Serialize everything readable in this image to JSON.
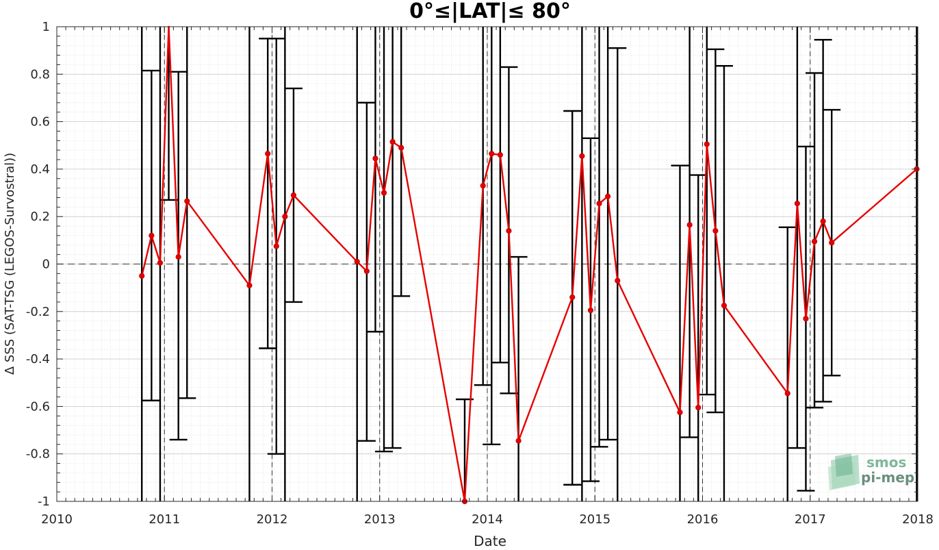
{
  "chart_data": {
    "type": "line",
    "title": "0°≤|LAT|≤ 80°",
    "xlabel": "Date",
    "ylabel": "Δ SSS (SAT-TSG (LEGOS-Survostral))",
    "xlim": [
      2010,
      2018
    ],
    "ylim": [
      -1,
      1
    ],
    "x_ticks": [
      "2010",
      "2011",
      "2012",
      "2013",
      "2014",
      "2015",
      "2016",
      "2017",
      "2018"
    ],
    "y_ticks": [
      "1",
      "0.8",
      "0.6",
      "0.4",
      "0.2",
      "0",
      "-0.2",
      "-0.4",
      "-0.6",
      "-0.8",
      "-1"
    ],
    "grid": true,
    "minor_grid": true,
    "zero_line": true,
    "year_boundary_lines": [
      2011,
      2012,
      2013,
      2014,
      2015,
      2016,
      2017
    ],
    "series": [
      {
        "color": "#e60000",
        "marker": "circle",
        "points": [
          {
            "x": 2010.79,
            "y": -0.05,
            "low": -1.0,
            "high": 1.0
          },
          {
            "x": 2010.88,
            "y": 0.12,
            "low": -0.575,
            "high": 0.815
          },
          {
            "x": 2010.96,
            "y": 0.005,
            "low": -1.0,
            "high": 1.0
          },
          {
            "x": 2011.04,
            "y": 1.05,
            "low": 0.27,
            "high": 1.0
          },
          {
            "x": 2011.13,
            "y": 0.03,
            "low": -0.74,
            "high": 0.81
          },
          {
            "x": 2011.21,
            "y": 0.265,
            "low": -0.565,
            "high": 1.0
          },
          {
            "x": 2011.79,
            "y": -0.09,
            "low": -1.0,
            "high": 1.0
          },
          {
            "x": 2011.96,
            "y": 0.465,
            "low": -0.355,
            "high": 0.95
          },
          {
            "x": 2012.04,
            "y": 0.075,
            "low": -0.8,
            "high": 0.95
          },
          {
            "x": 2012.12,
            "y": 0.2,
            "low": -1.0,
            "high": 1.0
          },
          {
            "x": 2012.2,
            "y": 0.29,
            "low": -0.16,
            "high": 0.74
          },
          {
            "x": 2012.79,
            "y": 0.01,
            "low": -1.0,
            "high": 1.0
          },
          {
            "x": 2012.88,
            "y": -0.03,
            "low": -0.745,
            "high": 0.68
          },
          {
            "x": 2012.96,
            "y": 0.445,
            "low": -0.285,
            "high": 1.0
          },
          {
            "x": 2013.04,
            "y": 0.3,
            "low": -0.79,
            "high": 1.0
          },
          {
            "x": 2013.12,
            "y": 0.515,
            "low": -0.775,
            "high": 1.0
          },
          {
            "x": 2013.2,
            "y": 0.49,
            "low": -0.135,
            "high": 1.0
          },
          {
            "x": 2013.79,
            "y": -1.0,
            "low": -1.0,
            "high": -0.57
          },
          {
            "x": 2013.96,
            "y": 0.33,
            "low": -0.51,
            "high": 1.0
          },
          {
            "x": 2014.04,
            "y": 0.465,
            "low": -0.76,
            "high": 1.0
          },
          {
            "x": 2014.12,
            "y": 0.46,
            "low": -0.415,
            "high": 1.0
          },
          {
            "x": 2014.2,
            "y": 0.14,
            "low": -0.545,
            "high": 0.83
          },
          {
            "x": 2014.29,
            "y": -0.745,
            "low": -1.0,
            "high": 0.03
          },
          {
            "x": 2014.79,
            "y": -0.14,
            "low": -0.93,
            "high": 0.645
          },
          {
            "x": 2014.88,
            "y": 0.455,
            "low": -1.0,
            "high": 1.0
          },
          {
            "x": 2014.96,
            "y": -0.195,
            "low": -0.915,
            "high": 0.53
          },
          {
            "x": 2015.04,
            "y": 0.255,
            "low": -0.77,
            "high": 1.0
          },
          {
            "x": 2015.12,
            "y": 0.285,
            "low": -0.74,
            "high": 1.0
          },
          {
            "x": 2015.21,
            "y": -0.07,
            "low": -1.0,
            "high": 0.91
          },
          {
            "x": 2015.79,
            "y": -0.625,
            "low": -1.0,
            "high": 0.415
          },
          {
            "x": 2015.88,
            "y": 0.165,
            "low": -0.73,
            "high": 1.0
          },
          {
            "x": 2015.96,
            "y": -0.605,
            "low": -1.0,
            "high": 0.375
          },
          {
            "x": 2016.04,
            "y": 0.505,
            "low": -0.55,
            "high": 1.0
          },
          {
            "x": 2016.12,
            "y": 0.14,
            "low": -0.625,
            "high": 0.905
          },
          {
            "x": 2016.2,
            "y": -0.175,
            "low": -1.0,
            "high": 0.835
          },
          {
            "x": 2016.79,
            "y": -0.545,
            "low": -1.0,
            "high": 0.155
          },
          {
            "x": 2016.88,
            "y": 0.255,
            "low": -0.775,
            "high": 1.0
          },
          {
            "x": 2016.96,
            "y": -0.23,
            "low": -0.955,
            "high": 0.495
          },
          {
            "x": 2017.04,
            "y": 0.095,
            "low": -0.605,
            "high": 0.805
          },
          {
            "x": 2017.12,
            "y": 0.18,
            "low": -0.58,
            "high": 0.945
          },
          {
            "x": 2017.2,
            "y": 0.09,
            "low": -0.47,
            "high": 0.65
          },
          {
            "x": 2017.99,
            "y": 0.4,
            "low": -1.0,
            "high": 1.0
          }
        ]
      }
    ]
  },
  "logo": {
    "line1": "smos",
    "line2": "pi-mep"
  }
}
